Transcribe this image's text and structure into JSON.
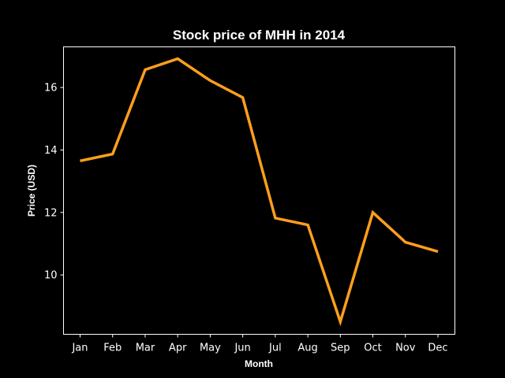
{
  "chart_data": {
    "type": "line",
    "title": "Stock price of MHH in 2014",
    "xlabel": "Month",
    "ylabel": "Price (USD)",
    "categories": [
      "Jan",
      "Feb",
      "Mar",
      "Apr",
      "May",
      "Jun",
      "Jul",
      "Aug",
      "Sep",
      "Oct",
      "Nov",
      "Dec"
    ],
    "series": [
      {
        "values": [
          13.65,
          13.87,
          16.57,
          16.92,
          16.22,
          15.68,
          11.82,
          11.6,
          8.5,
          12.0,
          11.05,
          10.75
        ],
        "color": "#ff9f1c"
      }
    ],
    "yticks": [
      10,
      12,
      14,
      16
    ],
    "ylim": [
      8.1,
      17.3
    ],
    "grid": false,
    "background": "#000000",
    "axis_color": "#ffffff"
  }
}
